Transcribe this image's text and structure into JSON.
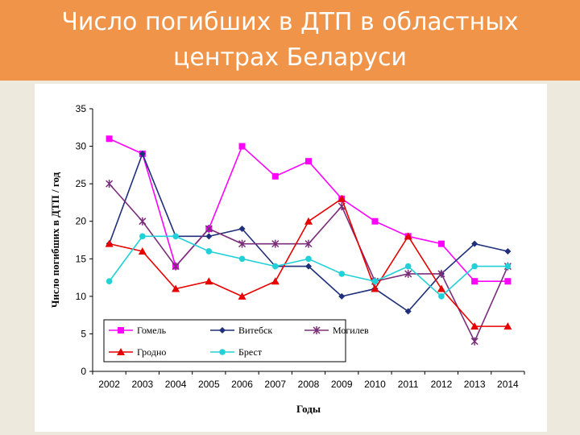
{
  "slide": {
    "title_line1": "Число погибших в ДТП в областных",
    "title_line2": "центрах Беларуси"
  },
  "colors": {
    "header": "#f0944a",
    "background": "#ede9dd"
  },
  "chart_data": {
    "type": "line",
    "title": "",
    "xlabel": "Годы",
    "ylabel": "Число погибших в ДТП / год",
    "categories": [
      "2002",
      "2003",
      "2004",
      "2005",
      "2006",
      "2007",
      "2008",
      "2009",
      "2010",
      "2011",
      "2012",
      "2013",
      "2014"
    ],
    "ylim": [
      0,
      35
    ],
    "yticks": [
      0,
      5,
      10,
      15,
      20,
      25,
      30,
      35
    ],
    "grid": false,
    "legend_position": "bottom-inside",
    "series": [
      {
        "name": "Гомель",
        "color": "#ff00ff",
        "marker": "square",
        "values": [
          31,
          29,
          14,
          19,
          30,
          26,
          28,
          23,
          20,
          18,
          17,
          12,
          12
        ]
      },
      {
        "name": "Витебск",
        "color": "#1f2f7a",
        "marker": "diamond",
        "values": [
          17,
          29,
          18,
          18,
          19,
          14,
          14,
          10,
          11,
          8,
          13,
          17,
          16
        ]
      },
      {
        "name": "Могилев",
        "color": "#7a2e7a",
        "marker": "asterisk",
        "values": [
          25,
          20,
          14,
          19,
          17,
          17,
          17,
          22,
          12,
          13,
          13,
          4,
          14
        ]
      },
      {
        "name": "Гродно",
        "color": "#e60000",
        "marker": "triangle",
        "values": [
          17,
          16,
          11,
          12,
          10,
          12,
          20,
          23,
          11,
          18,
          11,
          6,
          6
        ]
      },
      {
        "name": "Брест",
        "color": "#22d0d8",
        "marker": "circle",
        "values": [
          12,
          18,
          18,
          16,
          15,
          14,
          15,
          13,
          12,
          14,
          10,
          14,
          14
        ]
      }
    ]
  }
}
